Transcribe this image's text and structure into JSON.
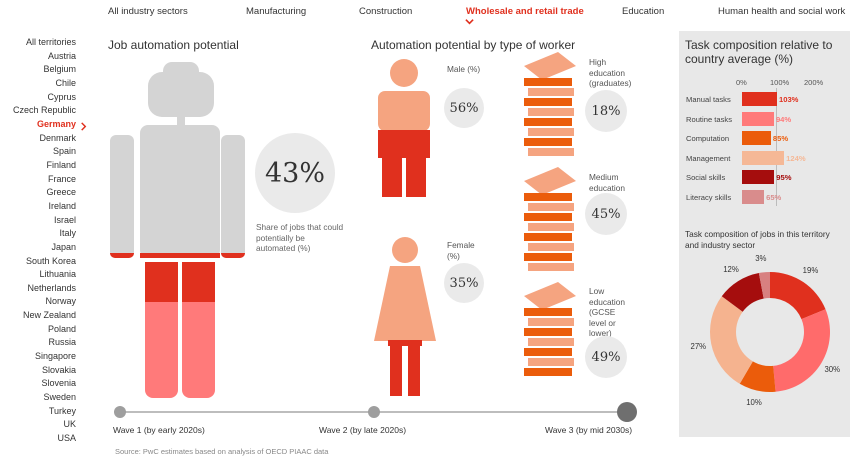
{
  "nav": {
    "tabs": [
      "All industry sectors",
      "Manufacturing",
      "Construction",
      "Wholesale and retail trade",
      "Education",
      "Human health and social work"
    ],
    "active_index": 3
  },
  "countries": {
    "items": [
      "All territories",
      "Austria",
      "Belgium",
      "Chile",
      "Cyprus",
      "Czech Republic",
      "Germany",
      "Denmark",
      "Spain",
      "Finland",
      "France",
      "Greece",
      "Ireland",
      "Israel",
      "Italy",
      "Japan",
      "South Korea",
      "Lithuania",
      "Netherlands",
      "Norway",
      "New Zealand",
      "Poland",
      "Russia",
      "Singapore",
      "Slovakia",
      "Slovenia",
      "Sweden",
      "Turkey",
      "UK",
      "USA"
    ],
    "selected": "Germany"
  },
  "job": {
    "title": "Job automation potential",
    "value": "43%",
    "note": "Share of jobs that could potentially be automated (%)"
  },
  "worker": {
    "title": "Automation potential by type of worker",
    "male": {
      "label": "Male (%)",
      "value": "56%",
      "share": 0.56
    },
    "female": {
      "label": "Female (%)",
      "value": "35%",
      "share": 0.35
    },
    "high": {
      "label": "High education (graduates)",
      "value": "18%",
      "share": 0.18
    },
    "medium": {
      "label": "Medium education",
      "value": "45%",
      "share": 0.45
    },
    "low": {
      "label": "Low education (GCSE level or lower)",
      "value": "49%",
      "share": 0.49
    }
  },
  "timeline": {
    "waves": [
      "Wave 1 (by early 2020s)",
      "Wave 2 (by late 2020s)",
      "Wave 3 (by mid 2030s)"
    ],
    "active_index": 2
  },
  "source": "Source: PwC estimates based on analysis of OECD PIAAC data",
  "colors": {
    "red": "#e0301e",
    "dark_red": "#a50d0d",
    "orange": "#eb5c0b",
    "salmon": "#f5a480",
    "pink": "#ff7a7a",
    "grey": "#d4d4d4",
    "accent": "#e0301e"
  },
  "chart_data": [
    {
      "type": "bar",
      "title": "Task composition relative to country average (%)",
      "xlim": [
        0,
        200
      ],
      "ticks": [
        "0%",
        "100%",
        "200%"
      ],
      "categories": [
        "Manual tasks",
        "Routine tasks",
        "Computation",
        "Management",
        "Social skills",
        "Literacy skills"
      ],
      "values": [
        103,
        94,
        85,
        124,
        95,
        65
      ],
      "value_labels": [
        "103%",
        "94%",
        "85%",
        "124%",
        "95%",
        "65%"
      ],
      "colors": [
        "#e0301e",
        "#ff7a7a",
        "#eb5c0b",
        "#f5b896",
        "#a50d0d",
        "#d98c8c"
      ]
    },
    {
      "type": "pie",
      "title": "Task composition of jobs in this territory and industry sector",
      "values": [
        19,
        30,
        10,
        27,
        12,
        3
      ],
      "labels": [
        "19%",
        "30%",
        "10%",
        "27%",
        "12%",
        "3%"
      ],
      "colors": [
        "#e0301e",
        "#ff6b6b",
        "#eb5c0b",
        "#f5b38f",
        "#a50d0d",
        "#d88080"
      ]
    }
  ]
}
